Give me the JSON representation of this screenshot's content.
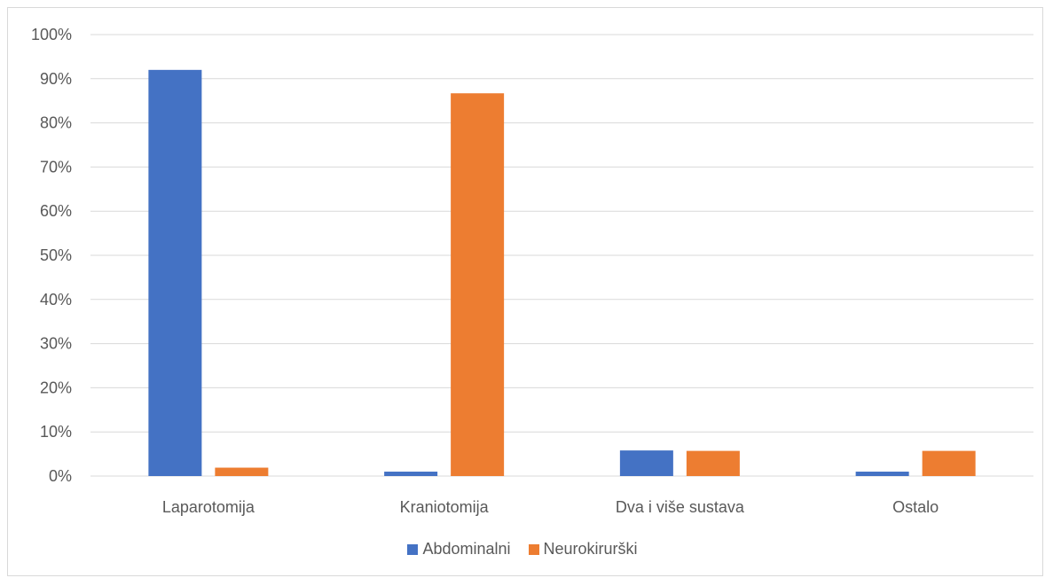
{
  "chart_data": {
    "type": "bar",
    "categories": [
      "Laparotomija",
      "Kraniotomija",
      "Dva i više sustava",
      "Ostalo"
    ],
    "series": [
      {
        "name": "Abdominalni",
        "values": [
          92,
          1,
          5.8,
          1
        ],
        "color": "#4472c4"
      },
      {
        "name": "Neurokirurški",
        "values": [
          1.9,
          86.7,
          5.7,
          5.7
        ],
        "color": "#ed7d31"
      }
    ],
    "ylim": [
      0,
      100
    ],
    "yticks": [
      "0%",
      "10%",
      "20%",
      "30%",
      "40%",
      "50%",
      "60%",
      "70%",
      "80%",
      "90%",
      "100%"
    ],
    "grid": true,
    "legend_position": "bottom"
  }
}
